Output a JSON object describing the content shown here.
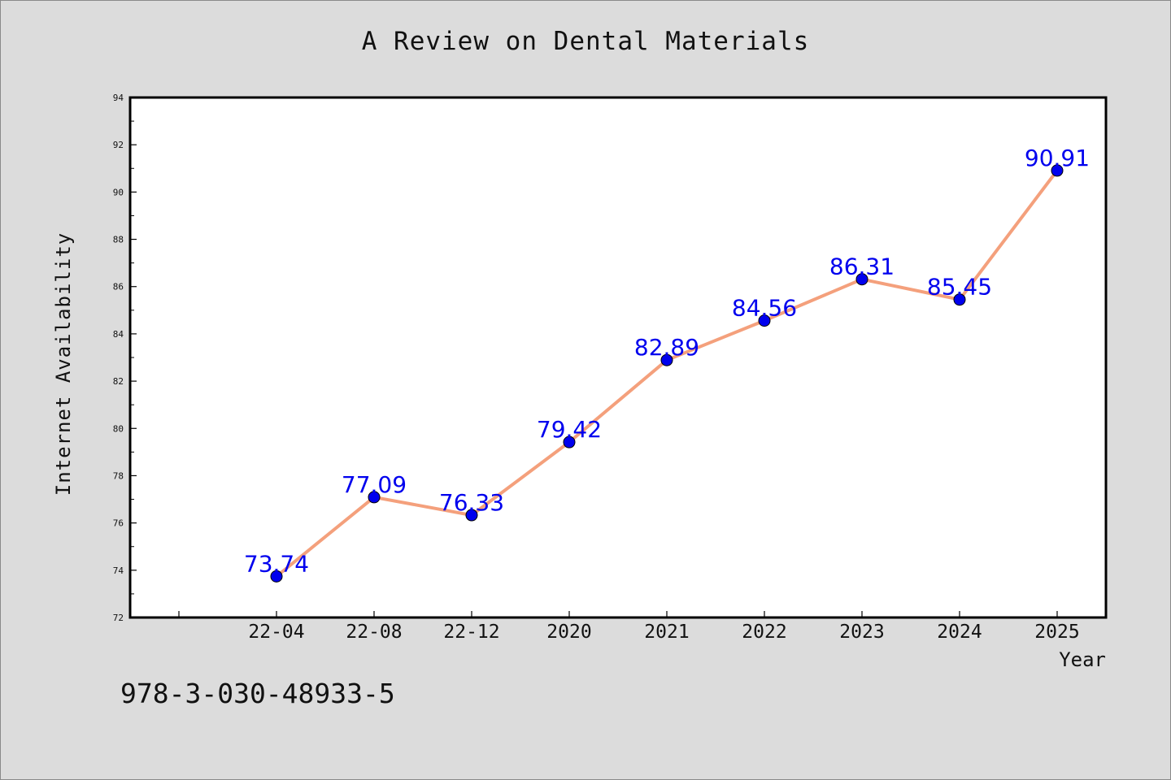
{
  "title": "A Review on Dental Materials",
  "footer_text": "978-3-030-48933-5",
  "chart_data": {
    "type": "line",
    "title": "A Review on Dental Materials",
    "xlabel": "Year",
    "ylabel": "Internet Availability",
    "categories": [
      "22-04",
      "22-08",
      "22-12",
      "2020",
      "2021",
      "2022",
      "2023",
      "2024",
      "2025"
    ],
    "series": [
      {
        "values": [
          73.74,
          77.09,
          76.33,
          79.42,
          82.89,
          84.56,
          86.31,
          85.45,
          90.91
        ]
      }
    ],
    "value_labels": [
      "73.74",
      "77.09",
      "76.33",
      "79.42",
      "82.89",
      "84.56",
      "86.31",
      "85.45",
      "90.91"
    ],
    "ylim": [
      72,
      94
    ],
    "yticks": [
      72,
      74,
      76,
      78,
      80,
      82,
      84,
      86,
      88,
      90,
      92,
      94
    ],
    "grid": false,
    "line_color": "#f4a07c",
    "marker_color": "#0000ee",
    "label_color": "#0000ee",
    "background_color": "#dcdcdc",
    "plot_background_color": "#ffffff"
  }
}
